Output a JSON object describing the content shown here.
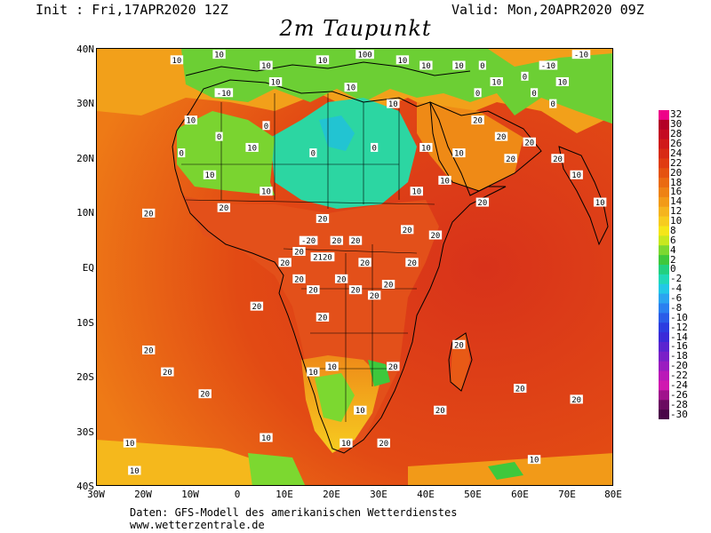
{
  "header": {
    "init": "Init : Fri,17APR2020 12Z",
    "valid": "Valid: Mon,20APR2020 09Z",
    "title": "2m Taupunkt"
  },
  "map": {
    "lat_labels": [
      "40N",
      "30N",
      "20N",
      "10N",
      "EQ",
      "10S",
      "20S",
      "30S",
      "40S"
    ],
    "lon_labels": [
      "30W",
      "20W",
      "10W",
      "0",
      "10E",
      "20E",
      "30E",
      "40E",
      "50E",
      "60E",
      "70E",
      "80E"
    ]
  },
  "colorbar": {
    "labels": [
      "32",
      "30",
      "28",
      "26",
      "24",
      "22",
      "20",
      "18",
      "16",
      "14",
      "12",
      "10",
      "8",
      "6",
      "4",
      "2",
      "0",
      "-2",
      "-4",
      "-6",
      "-8",
      "-10",
      "-12",
      "-14",
      "-16",
      "-18",
      "-20",
      "-22",
      "-24",
      "-26",
      "-28",
      "-30"
    ],
    "colors": [
      "#ee0088",
      "#b30026",
      "#c40a22",
      "#d01a1a",
      "#d82a14",
      "#e03c10",
      "#e5520e",
      "#ea6a10",
      "#ee8214",
      "#f29a18",
      "#f5b41e",
      "#f7cc1e",
      "#f5e618",
      "#c8e81e",
      "#7cd830",
      "#3ec83c",
      "#22d080",
      "#20d8b8",
      "#22c8e6",
      "#2aa4f0",
      "#2a80f0",
      "#2a5ce8",
      "#2c3ce0",
      "#3a2ad8",
      "#5a24d0",
      "#7a20c8",
      "#9a1cc0",
      "#ba18b8",
      "#d018b0",
      "#a0128c",
      "#6a0a60",
      "#4a0648"
    ]
  },
  "contour_labels": [
    {
      "t": "10",
      "lon": -13,
      "lat": 38
    },
    {
      "t": "10",
      "lon": -4,
      "lat": 39
    },
    {
      "t": "10",
      "lon": 6,
      "lat": 37
    },
    {
      "t": "10",
      "lon": 18,
      "lat": 38
    },
    {
      "t": "100",
      "lon": 27,
      "lat": 39
    },
    {
      "t": "10",
      "lon": 35,
      "lat": 38
    },
    {
      "t": "10",
      "lon": 40,
      "lat": 37
    },
    {
      "t": "10",
      "lon": 47,
      "lat": 37
    },
    {
      "t": "0",
      "lon": 52,
      "lat": 37
    },
    {
      "t": "-10",
      "lon": 66,
      "lat": 37
    },
    {
      "t": "-10",
      "lon": 73,
      "lat": 39
    },
    {
      "t": "0",
      "lon": 61,
      "lat": 35
    },
    {
      "t": "10",
      "lon": 69,
      "lat": 34
    },
    {
      "t": "-10",
      "lon": -3,
      "lat": 32
    },
    {
      "t": "10",
      "lon": 8,
      "lat": 34
    },
    {
      "t": "10",
      "lon": 24,
      "lat": 33
    },
    {
      "t": "0",
      "lon": 51,
      "lat": 32
    },
    {
      "t": "10",
      "lon": 55,
      "lat": 34
    },
    {
      "t": "0",
      "lon": 63,
      "lat": 32
    },
    {
      "t": "0",
      "lon": 67,
      "lat": 30
    },
    {
      "t": "10",
      "lon": 33,
      "lat": 30
    },
    {
      "t": "10",
      "lon": -10,
      "lat": 27
    },
    {
      "t": "0",
      "lon": 6,
      "lat": 26
    },
    {
      "t": "10",
      "lon": 3,
      "lat": 22
    },
    {
      "t": "0",
      "lon": -4,
      "lat": 24
    },
    {
      "t": "0",
      "lon": 16,
      "lat": 21
    },
    {
      "t": "0",
      "lon": 29,
      "lat": 22
    },
    {
      "t": "20",
      "lon": 51,
      "lat": 27
    },
    {
      "t": "20",
      "lon": 56,
      "lat": 24
    },
    {
      "t": "20",
      "lon": 58,
      "lat": 20
    },
    {
      "t": "10",
      "lon": 40,
      "lat": 22
    },
    {
      "t": "10",
      "lon": 47,
      "lat": 21
    },
    {
      "t": "20",
      "lon": 62,
      "lat": 23
    },
    {
      "t": "20",
      "lon": 68,
      "lat": 20
    },
    {
      "t": "10",
      "lon": 72,
      "lat": 17
    },
    {
      "t": "10",
      "lon": 77,
      "lat": 12
    },
    {
      "t": "0",
      "lon": -12,
      "lat": 21
    },
    {
      "t": "10",
      "lon": -6,
      "lat": 17
    },
    {
      "t": "10",
      "lon": 6,
      "lat": 14
    },
    {
      "t": "10",
      "lon": 44,
      "lat": 16
    },
    {
      "t": "10",
      "lon": 38,
      "lat": 14
    },
    {
      "t": "20",
      "lon": 52,
      "lat": 12
    },
    {
      "t": "20",
      "lon": -19,
      "lat": 10
    },
    {
      "t": "20",
      "lon": -3,
      "lat": 11
    },
    {
      "t": "20",
      "lon": 18,
      "lat": 9
    },
    {
      "t": "20",
      "lon": 36,
      "lat": 7
    },
    {
      "t": "20",
      "lon": 42,
      "lat": 6
    },
    {
      "t": "-20",
      "lon": 15,
      "lat": 5
    },
    {
      "t": "20",
      "lon": 21,
      "lat": 5
    },
    {
      "t": "20",
      "lon": 25,
      "lat": 5
    },
    {
      "t": "20",
      "lon": 13,
      "lat": 3
    },
    {
      "t": "2120",
      "lon": 18,
      "lat": 2
    },
    {
      "t": "20",
      "lon": 10,
      "lat": 1
    },
    {
      "t": "20",
      "lon": 27,
      "lat": 1
    },
    {
      "t": "20",
      "lon": 37,
      "lat": 1
    },
    {
      "t": "20",
      "lon": 13,
      "lat": -2
    },
    {
      "t": "20",
      "lon": 22,
      "lat": -2
    },
    {
      "t": "20",
      "lon": 32,
      "lat": -3
    },
    {
      "t": "20",
      "lon": 16,
      "lat": -4
    },
    {
      "t": "20",
      "lon": 25,
      "lat": -4
    },
    {
      "t": "20",
      "lon": 29,
      "lat": -5
    },
    {
      "t": "20",
      "lon": 4,
      "lat": -7
    },
    {
      "t": "20",
      "lon": 18,
      "lat": -9
    },
    {
      "t": "20",
      "lon": 47,
      "lat": -14
    },
    {
      "t": "20",
      "lon": -19,
      "lat": -15
    },
    {
      "t": "20",
      "lon": -15,
      "lat": -19
    },
    {
      "t": "10",
      "lon": 16,
      "lat": -19
    },
    {
      "t": "10",
      "lon": 20,
      "lat": -18
    },
    {
      "t": "20",
      "lon": 33,
      "lat": -18
    },
    {
      "t": "20",
      "lon": 60,
      "lat": -22
    },
    {
      "t": "20",
      "lon": 72,
      "lat": -24
    },
    {
      "t": "20",
      "lon": -7,
      "lat": -23
    },
    {
      "t": "10",
      "lon": 26,
      "lat": -26
    },
    {
      "t": "20",
      "lon": 43,
      "lat": -26
    },
    {
      "t": "10",
      "lon": 6,
      "lat": -31
    },
    {
      "t": "10",
      "lon": 23,
      "lat": -32
    },
    {
      "t": "20",
      "lon": 31,
      "lat": -32
    },
    {
      "t": "10",
      "lon": -23,
      "lat": -32
    },
    {
      "t": "10",
      "lon": -22,
      "lat": -37
    },
    {
      "t": "10",
      "lon": 63,
      "lat": -35
    }
  ],
  "footer": {
    "line1": "Daten: GFS-Modell des amerikanischen Wetterdienstes",
    "line2": "www.wetterzentrale.de"
  }
}
